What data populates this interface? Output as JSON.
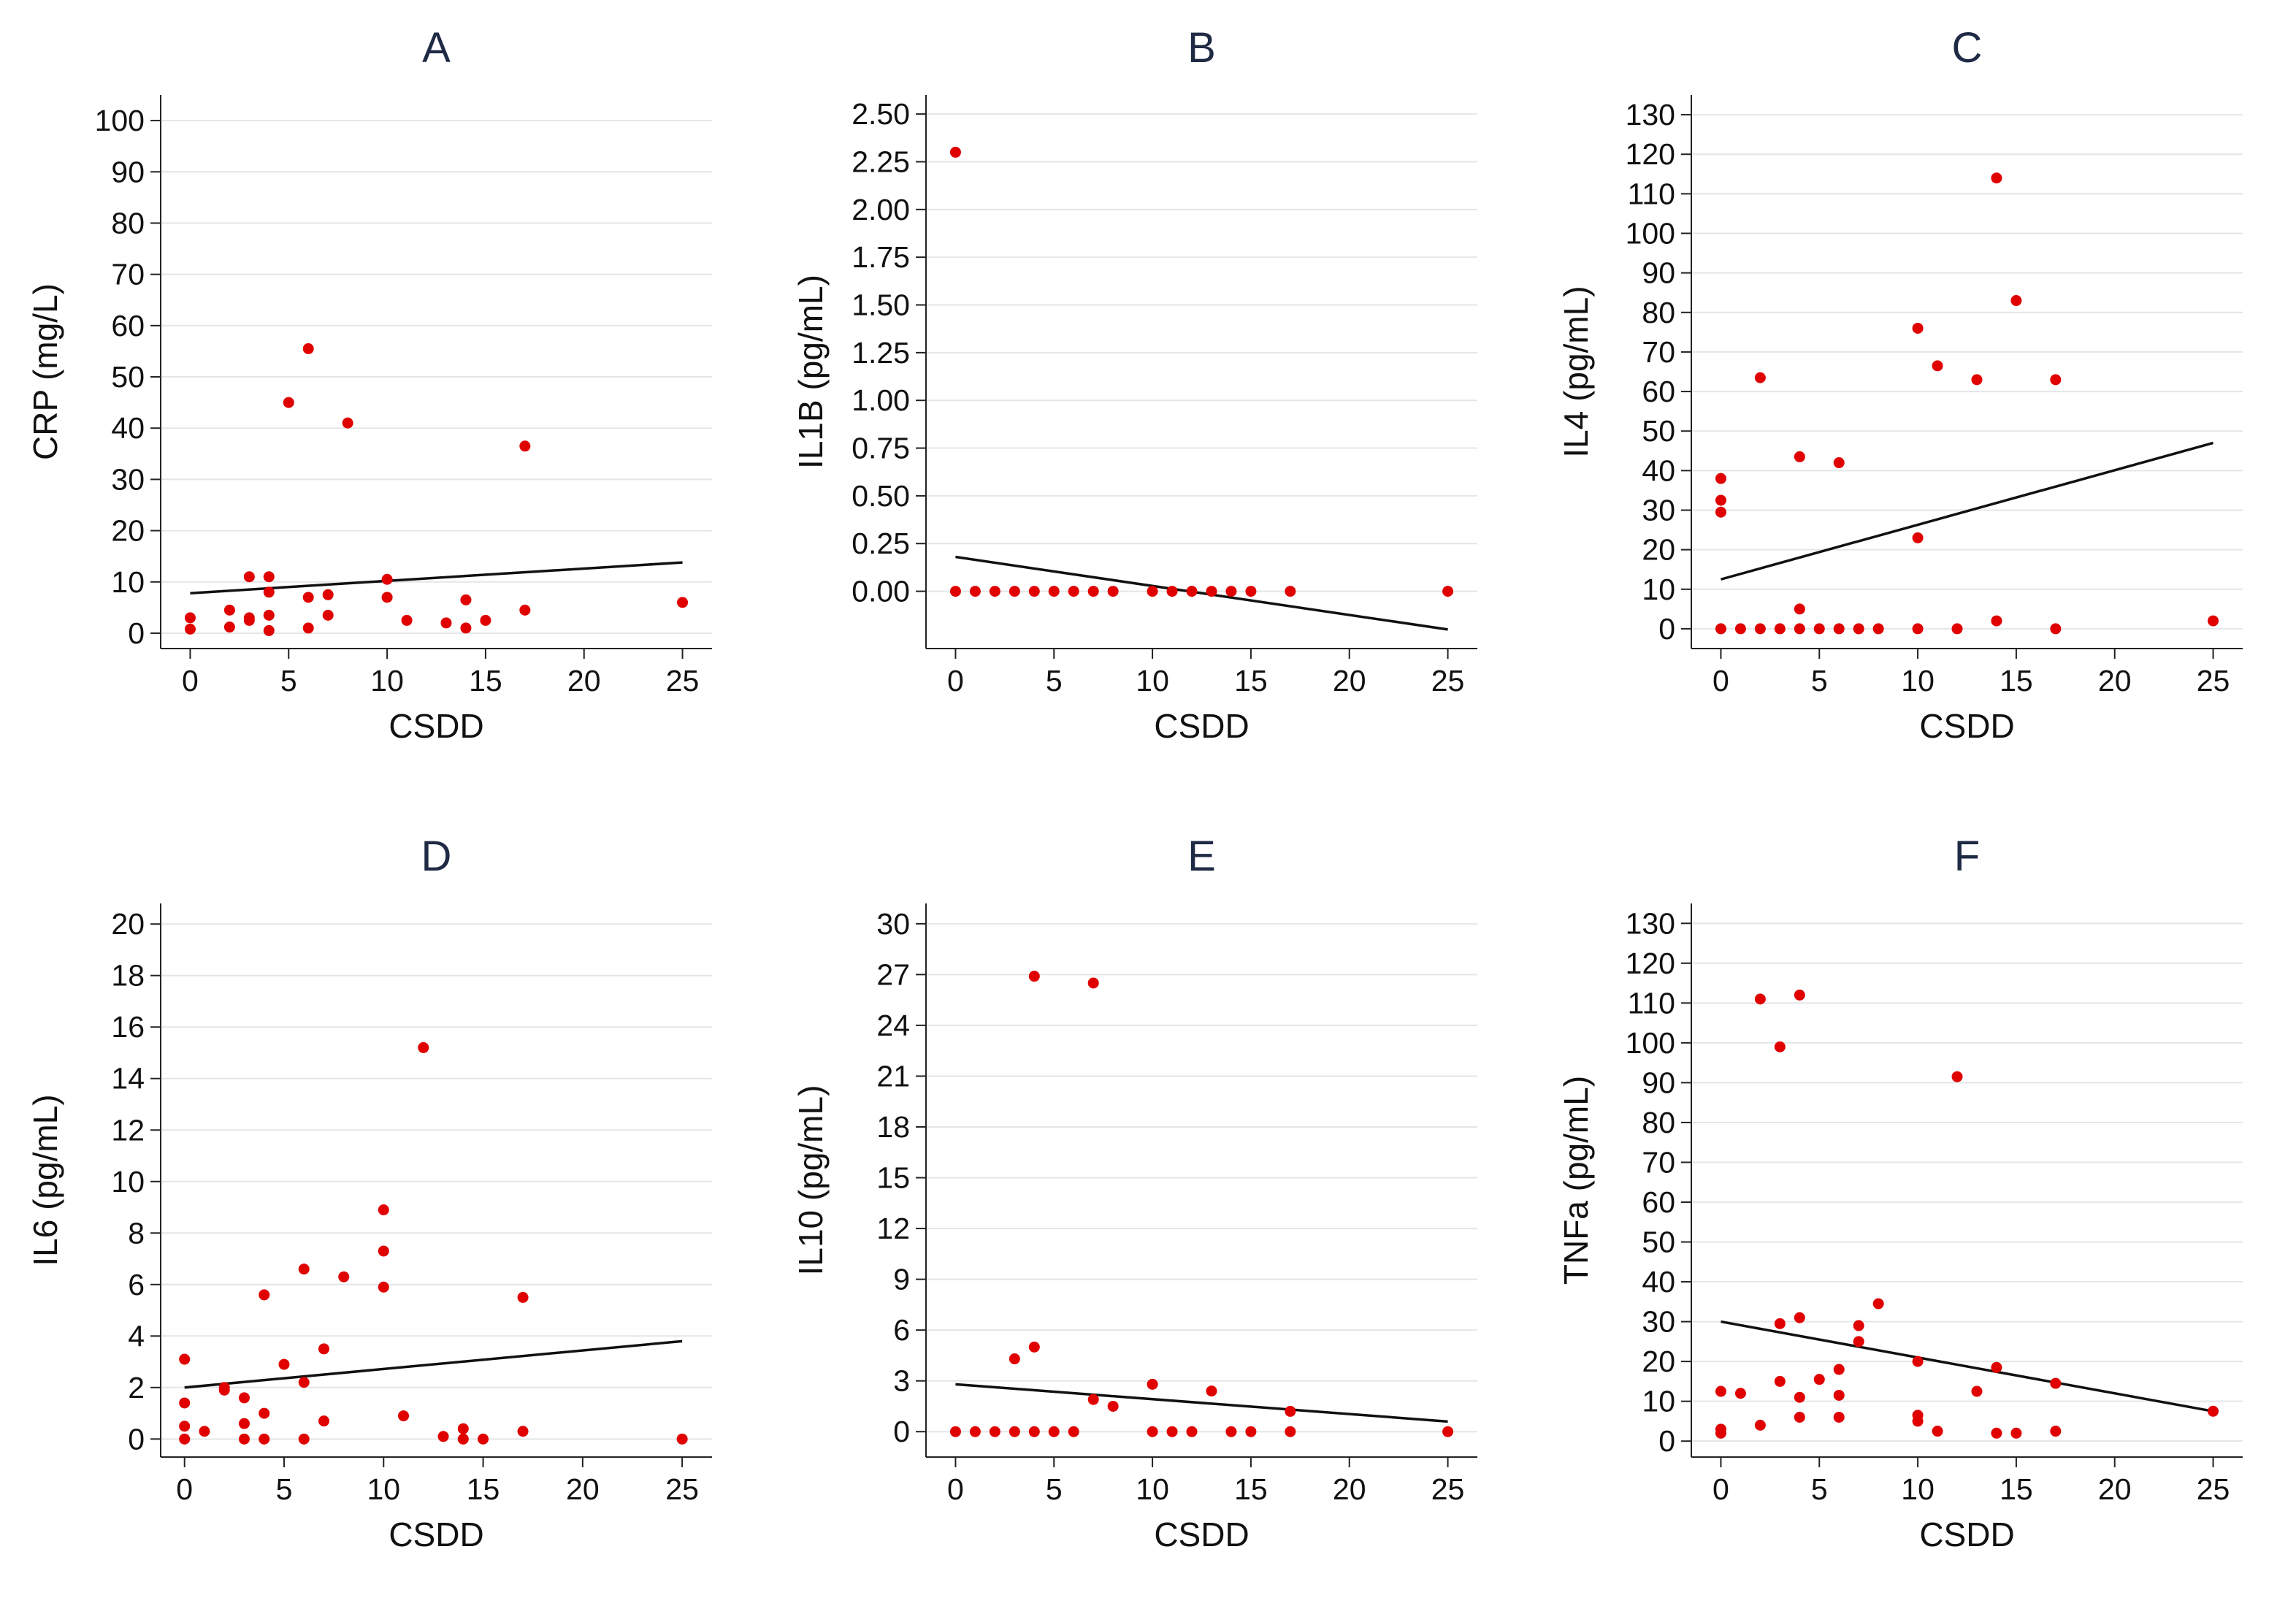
{
  "colors": {
    "point": "#e00000",
    "fit_line": "#111111",
    "grid": "#e3e6e8",
    "title": "#1f2a44"
  },
  "chart_data": [
    {
      "type": "scatter",
      "title": "A",
      "xlabel": "CSDD",
      "ylabel": "CRP (mg/L)",
      "xlim": [
        -1.5,
        26.5
      ],
      "ylim": [
        -3,
        105
      ],
      "xticks": [
        0,
        5,
        10,
        15,
        20,
        25
      ],
      "xtick_labels": [
        "0",
        "5",
        "10",
        "15",
        "20",
        "25"
      ],
      "yticks": [
        0,
        10,
        20,
        30,
        40,
        50,
        60,
        70,
        80,
        90,
        100
      ],
      "ytick_labels": [
        "0",
        "10",
        "20",
        "30",
        "40",
        "50",
        "60",
        "70",
        "80",
        "90",
        "100"
      ],
      "grid": true,
      "points": [
        [
          0,
          0.8
        ],
        [
          0,
          3
        ],
        [
          2,
          1.2
        ],
        [
          2,
          4.5
        ],
        [
          3,
          2.5
        ],
        [
          3,
          3
        ],
        [
          3,
          11
        ],
        [
          4,
          0.5
        ],
        [
          4,
          3.5
        ],
        [
          4,
          8
        ],
        [
          4,
          11
        ],
        [
          5,
          45
        ],
        [
          6,
          1
        ],
        [
          6,
          7
        ],
        [
          6,
          55.5
        ],
        [
          7,
          3.5
        ],
        [
          7,
          7.5
        ],
        [
          8,
          41
        ],
        [
          10,
          7
        ],
        [
          10,
          10.5
        ],
        [
          11,
          2.5
        ],
        [
          13,
          2
        ],
        [
          14,
          1
        ],
        [
          14,
          6.5
        ],
        [
          15,
          2.5
        ],
        [
          17,
          4.5
        ],
        [
          17,
          36.5
        ],
        [
          25,
          6
        ]
      ],
      "fit_line": [
        [
          0,
          7.8
        ],
        [
          25,
          13.8
        ]
      ]
    },
    {
      "type": "scatter",
      "title": "B",
      "xlabel": "CSDD",
      "ylabel": "IL1B (pg/mL)",
      "xlim": [
        -1.5,
        26.5
      ],
      "ylim": [
        -0.3,
        2.6
      ],
      "xticks": [
        0,
        5,
        10,
        15,
        20,
        25
      ],
      "xtick_labels": [
        "0",
        "5",
        "10",
        "15",
        "20",
        "25"
      ],
      "yticks": [
        0,
        0.25,
        0.5,
        0.75,
        1,
        1.25,
        1.5,
        1.75,
        2,
        2.25,
        2.5
      ],
      "ytick_labels": [
        "0.00",
        "0.25",
        "0.50",
        "0.75",
        "1.00",
        "1.25",
        "1.50",
        "1.75",
        "2.00",
        "2.25",
        "2.50"
      ],
      "grid": true,
      "points": [
        [
          0,
          2.3
        ],
        [
          0,
          0
        ],
        [
          1,
          0
        ],
        [
          2,
          0
        ],
        [
          3,
          0
        ],
        [
          4,
          0
        ],
        [
          5,
          0
        ],
        [
          6,
          0
        ],
        [
          7,
          0
        ],
        [
          8,
          0
        ],
        [
          10,
          0
        ],
        [
          11,
          0
        ],
        [
          12,
          0
        ],
        [
          13,
          0
        ],
        [
          14,
          0
        ],
        [
          15,
          0
        ],
        [
          17,
          0
        ],
        [
          25,
          0
        ]
      ],
      "fit_line": [
        [
          0,
          0.18
        ],
        [
          25,
          -0.2
        ]
      ]
    },
    {
      "type": "scatter",
      "title": "C",
      "xlabel": "CSDD",
      "ylabel": "IL4 (pg/mL)",
      "xlim": [
        -1.5,
        26.5
      ],
      "ylim": [
        -5,
        135
      ],
      "xticks": [
        0,
        5,
        10,
        15,
        20,
        25
      ],
      "xtick_labels": [
        "0",
        "5",
        "10",
        "15",
        "20",
        "25"
      ],
      "yticks": [
        0,
        10,
        20,
        30,
        40,
        50,
        60,
        70,
        80,
        90,
        100,
        110,
        120,
        130
      ],
      "ytick_labels": [
        "0",
        "10",
        "20",
        "30",
        "40",
        "50",
        "60",
        "70",
        "80",
        "90",
        "100",
        "110",
        "120",
        "130"
      ],
      "grid": true,
      "points": [
        [
          0,
          0
        ],
        [
          0,
          29.5
        ],
        [
          0,
          32.5
        ],
        [
          0,
          38
        ],
        [
          1,
          0
        ],
        [
          2,
          0
        ],
        [
          2,
          63.5
        ],
        [
          3,
          0
        ],
        [
          4,
          0
        ],
        [
          4,
          5
        ],
        [
          4,
          43.5
        ],
        [
          5,
          0
        ],
        [
          6,
          0
        ],
        [
          6,
          42
        ],
        [
          7,
          0
        ],
        [
          8,
          0
        ],
        [
          10,
          0
        ],
        [
          10,
          23
        ],
        [
          10,
          76
        ],
        [
          11,
          66.5
        ],
        [
          12,
          0
        ],
        [
          13,
          63
        ],
        [
          14,
          2
        ],
        [
          14,
          114
        ],
        [
          15,
          83
        ],
        [
          17,
          0
        ],
        [
          17,
          63
        ],
        [
          25,
          2
        ]
      ],
      "fit_line": [
        [
          0,
          12.5
        ],
        [
          25,
          47
        ]
      ]
    },
    {
      "type": "scatter",
      "title": "D",
      "xlabel": "CSDD",
      "ylabel": "IL6 (pg/mL)",
      "xlim": [
        -1.2,
        26.5
      ],
      "ylim": [
        -0.7,
        20.8
      ],
      "xticks": [
        0,
        5,
        10,
        15,
        20,
        25
      ],
      "xtick_labels": [
        "0",
        "5",
        "10",
        "15",
        "20",
        "25"
      ],
      "yticks": [
        0,
        2,
        4,
        6,
        8,
        10,
        12,
        14,
        16,
        18,
        20
      ],
      "ytick_labels": [
        "0",
        "2",
        "4",
        "6",
        "8",
        "10",
        "12",
        "14",
        "16",
        "18",
        "20"
      ],
      "grid": true,
      "points": [
        [
          0,
          0
        ],
        [
          0,
          0.5
        ],
        [
          0,
          1.4
        ],
        [
          0,
          3.1
        ],
        [
          1,
          0.3
        ],
        [
          2,
          1.9
        ],
        [
          2,
          2
        ],
        [
          3,
          0
        ],
        [
          3,
          0.6
        ],
        [
          3,
          1.6
        ],
        [
          4,
          0
        ],
        [
          4,
          1
        ],
        [
          4,
          5.6
        ],
        [
          5,
          2.9
        ],
        [
          6,
          0
        ],
        [
          6,
          2.2
        ],
        [
          6,
          6.6
        ],
        [
          7,
          0.7
        ],
        [
          7,
          3.5
        ],
        [
          8,
          6.3
        ],
        [
          10,
          5.9
        ],
        [
          10,
          7.3
        ],
        [
          10,
          8.9
        ],
        [
          11,
          0.9
        ],
        [
          12,
          15.2
        ],
        [
          13,
          0.1
        ],
        [
          14,
          0
        ],
        [
          14,
          0.4
        ],
        [
          15,
          0
        ],
        [
          17,
          0.3
        ],
        [
          17,
          5.5
        ],
        [
          25,
          0
        ]
      ],
      "fit_line": [
        [
          0,
          2
        ],
        [
          25,
          3.8
        ]
      ]
    },
    {
      "type": "scatter",
      "title": "E",
      "xlabel": "CSDD",
      "ylabel": "IL10 (pg/mL)",
      "xlim": [
        -1.5,
        26.5
      ],
      "ylim": [
        -1.5,
        31.2
      ],
      "xticks": [
        0,
        5,
        10,
        15,
        20,
        25
      ],
      "xtick_labels": [
        "0",
        "5",
        "10",
        "15",
        "20",
        "25"
      ],
      "yticks": [
        0,
        3,
        6,
        9,
        12,
        15,
        18,
        21,
        24,
        27,
        30
      ],
      "ytick_labels": [
        "0",
        "3",
        "6",
        "9",
        "12",
        "15",
        "18",
        "21",
        "24",
        "27",
        "30"
      ],
      "grid": true,
      "points": [
        [
          0,
          0
        ],
        [
          1,
          0
        ],
        [
          2,
          0
        ],
        [
          3,
          0
        ],
        [
          3,
          4.3
        ],
        [
          4,
          0
        ],
        [
          4,
          5
        ],
        [
          4,
          26.9
        ],
        [
          5,
          0
        ],
        [
          6,
          0
        ],
        [
          7,
          1.9
        ],
        [
          7,
          26.5
        ],
        [
          8,
          1.5
        ],
        [
          10,
          0
        ],
        [
          10,
          2.8
        ],
        [
          11,
          0
        ],
        [
          12,
          0
        ],
        [
          13,
          2.4
        ],
        [
          14,
          0
        ],
        [
          15,
          0
        ],
        [
          17,
          0
        ],
        [
          17,
          1.2
        ],
        [
          25,
          0
        ]
      ],
      "fit_line": [
        [
          0,
          2.8
        ],
        [
          25,
          0.6
        ]
      ]
    },
    {
      "type": "scatter",
      "title": "F",
      "xlabel": "CSDD",
      "ylabel": "TNFa (pg/mL)",
      "xlim": [
        -1.5,
        26.5
      ],
      "ylim": [
        -4,
        135
      ],
      "xticks": [
        0,
        5,
        10,
        15,
        20,
        25
      ],
      "xtick_labels": [
        "0",
        "5",
        "10",
        "15",
        "20",
        "25"
      ],
      "yticks": [
        0,
        10,
        20,
        30,
        40,
        50,
        60,
        70,
        80,
        90,
        100,
        110,
        120,
        130
      ],
      "ytick_labels": [
        "0",
        "10",
        "20",
        "30",
        "40",
        "50",
        "60",
        "70",
        "80",
        "90",
        "100",
        "110",
        "120",
        "130"
      ],
      "grid": true,
      "points": [
        [
          0,
          2
        ],
        [
          0,
          3
        ],
        [
          0,
          12.5
        ],
        [
          1,
          12
        ],
        [
          2,
          4
        ],
        [
          2,
          111
        ],
        [
          3,
          15
        ],
        [
          3,
          29.5
        ],
        [
          3,
          99
        ],
        [
          4,
          6
        ],
        [
          4,
          11
        ],
        [
          4,
          31
        ],
        [
          4,
          112
        ],
        [
          5,
          15.5
        ],
        [
          6,
          6
        ],
        [
          6,
          11.5
        ],
        [
          6,
          18
        ],
        [
          7,
          25
        ],
        [
          7,
          29
        ],
        [
          8,
          34.5
        ],
        [
          10,
          5
        ],
        [
          10,
          6.5
        ],
        [
          10,
          20
        ],
        [
          11,
          2.5
        ],
        [
          12,
          91.5
        ],
        [
          13,
          12.5
        ],
        [
          14,
          2
        ],
        [
          14,
          18.5
        ],
        [
          15,
          2
        ],
        [
          17,
          2.5
        ],
        [
          17,
          14.5
        ],
        [
          25,
          7.5
        ]
      ],
      "fit_line": [
        [
          0,
          30
        ],
        [
          25,
          7.5
        ]
      ]
    }
  ]
}
